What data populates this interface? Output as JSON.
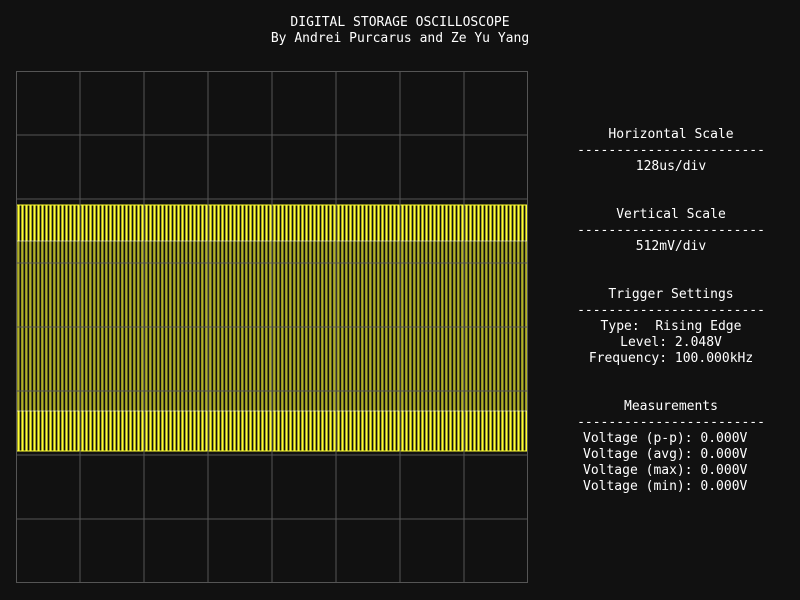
{
  "header": {
    "title": "DIGITAL STORAGE OSCILLOSCOPE",
    "subtitle": "By Andrei Purcarus and Ze Yu Yang"
  },
  "divider_text": "------------------------",
  "horizontal_scale": {
    "heading": "Horizontal Scale",
    "value": "128us/div"
  },
  "vertical_scale": {
    "heading": "Vertical Scale",
    "value": "512mV/div"
  },
  "trigger": {
    "heading": "Trigger Settings",
    "type": "Type:  Rising Edge",
    "level": "Level: 2.048V",
    "frequency": "Frequency: 100.000kHz"
  },
  "measurements": {
    "heading": "Measurements",
    "pp": "Voltage (p-p): 0.000V",
    "avg": "Voltage (avg): 0.000V",
    "max": "Voltage (max): 0.000V",
    "min": "Voltage (min): 0.000V"
  },
  "display": {
    "divisions_x": 8,
    "divisions_y": 8,
    "grid_color": "#555555",
    "trace_color": "#ffff33",
    "background": "#111111",
    "trace_band_top_div": 2.0,
    "trace_band_bottom_div": 6.0,
    "inner_dim_band_top_div": 2.75,
    "inner_dim_band_bottom_div": 5.25,
    "trace_lines": 128
  }
}
